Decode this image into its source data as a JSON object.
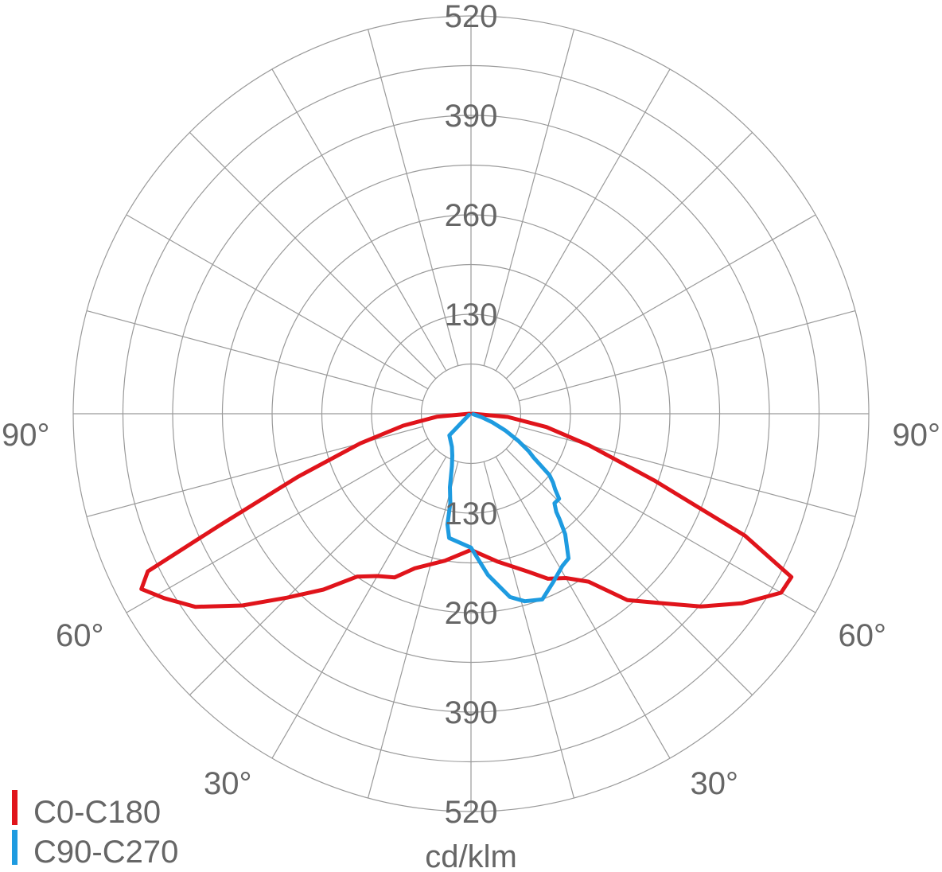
{
  "chart_data": {
    "type": "polar-line",
    "unit_label": "cd/klm",
    "r_ticks": [
      "130",
      "260",
      "390",
      "520"
    ],
    "r_max": 520,
    "angle_labels": {
      "left": [
        "90°",
        "60°",
        "30°"
      ],
      "right": [
        "90°",
        "60°",
        "30°"
      ]
    },
    "angle_label_values": [
      90,
      60,
      30
    ],
    "grid_spoke_step_deg": 15,
    "grid": true,
    "legend_position": "bottom-left",
    "series": [
      {
        "name": "C0-C180",
        "color": "#e0141b",
        "points": [
          {
            "angle": -90,
            "value": 2
          },
          {
            "angle": -85,
            "value": 45
          },
          {
            "angle": -80,
            "value": 90
          },
          {
            "angle": -75,
            "value": 150
          },
          {
            "angle": -70,
            "value": 240
          },
          {
            "angle": -66,
            "value": 362
          },
          {
            "angle": -64,
            "value": 470
          },
          {
            "angle": -62,
            "value": 488
          },
          {
            "angle": -59,
            "value": 468
          },
          {
            "angle": -55,
            "value": 440
          },
          {
            "angle": -50,
            "value": 390
          },
          {
            "angle": -45,
            "value": 340
          },
          {
            "angle": -40,
            "value": 300
          },
          {
            "angle": -35,
            "value": 260
          },
          {
            "angle": -30,
            "value": 245
          },
          {
            "angle": -25,
            "value": 236
          },
          {
            "angle": -20,
            "value": 215
          },
          {
            "angle": -10,
            "value": 195
          },
          {
            "angle": 0,
            "value": 178
          },
          {
            "angle": 10,
            "value": 196
          },
          {
            "angle": 20,
            "value": 220
          },
          {
            "angle": 25,
            "value": 238
          },
          {
            "angle": 30,
            "value": 248
          },
          {
            "angle": 35,
            "value": 268
          },
          {
            "angle": 40,
            "value": 318
          },
          {
            "angle": 45,
            "value": 350
          },
          {
            "angle": 50,
            "value": 392
          },
          {
            "angle": 55,
            "value": 432
          },
          {
            "angle": 60,
            "value": 468
          },
          {
            "angle": 63,
            "value": 470
          },
          {
            "angle": 66,
            "value": 392
          },
          {
            "angle": 70,
            "value": 255
          },
          {
            "angle": 75,
            "value": 160
          },
          {
            "angle": 80,
            "value": 100
          },
          {
            "angle": 85,
            "value": 48
          },
          {
            "angle": 90,
            "value": 2
          }
        ]
      },
      {
        "name": "C90-C270",
        "color": "#1e9be0",
        "points": [
          {
            "angle": -60,
            "value": 3
          },
          {
            "angle": -45,
            "value": 40
          },
          {
            "angle": -30,
            "value": 50
          },
          {
            "angle": -24,
            "value": 60
          },
          {
            "angle": -20,
            "value": 73
          },
          {
            "angle": -16,
            "value": 100
          },
          {
            "angle": -13,
            "value": 120
          },
          {
            "angle": -12,
            "value": 148
          },
          {
            "angle": -10,
            "value": 165
          },
          {
            "angle": 0,
            "value": 175
          },
          {
            "angle": 6,
            "value": 212
          },
          {
            "angle": 12,
            "value": 245
          },
          {
            "angle": 16,
            "value": 255
          },
          {
            "angle": 21,
            "value": 260
          },
          {
            "angle": 26,
            "value": 245
          },
          {
            "angle": 31,
            "value": 232
          },
          {
            "angle": 34,
            "value": 228
          },
          {
            "angle": 38,
            "value": 200
          },
          {
            "angle": 40,
            "value": 180
          },
          {
            "angle": 41,
            "value": 170
          },
          {
            "angle": 43,
            "value": 160
          },
          {
            "angle": 46,
            "value": 160
          },
          {
            "angle": 48,
            "value": 148
          },
          {
            "angle": 50,
            "value": 140
          },
          {
            "angle": 52,
            "value": 130
          },
          {
            "angle": 55,
            "value": 100
          },
          {
            "angle": 57,
            "value": 90
          },
          {
            "angle": 60,
            "value": 72
          },
          {
            "angle": 64,
            "value": 50
          },
          {
            "angle": 68,
            "value": 30
          },
          {
            "angle": 72,
            "value": 15
          },
          {
            "angle": 78,
            "value": 3
          }
        ]
      }
    ]
  }
}
